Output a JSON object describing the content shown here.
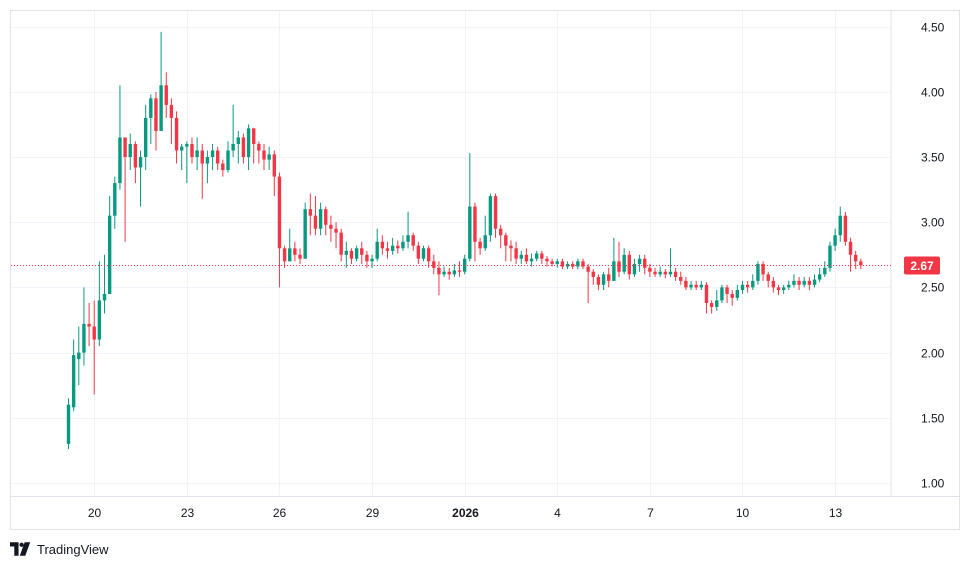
{
  "chart_data": {
    "type": "candlestick",
    "title": "",
    "xlabel": "",
    "ylabel": "",
    "ylim": [
      0.9,
      4.62
    ],
    "y_ticks": [
      "4.50",
      "4.00",
      "3.50",
      "3.00",
      "2.50",
      "2.00",
      "1.50",
      "1.00"
    ],
    "x_ticks": [
      {
        "label": "20",
        "index": 5,
        "bold": false
      },
      {
        "label": "23",
        "index": 23,
        "bold": false
      },
      {
        "label": "26",
        "index": 41,
        "bold": false
      },
      {
        "label": "29",
        "index": 59,
        "bold": false
      },
      {
        "label": "2026",
        "index": 77,
        "bold": true
      },
      {
        "label": "4",
        "index": 95,
        "bold": false
      },
      {
        "label": "7",
        "index": 113,
        "bold": false
      },
      {
        "label": "10",
        "index": 131,
        "bold": false
      },
      {
        "label": "13",
        "index": 149,
        "bold": false
      }
    ],
    "last_price": "2.67",
    "last_value": 2.67,
    "up_color": "#089981",
    "down_color": "#f23645",
    "grid": true,
    "candles": [
      [
        1.3,
        1.6,
        1.65,
        1.26
      ],
      [
        1.58,
        1.98,
        2.1,
        1.55
      ],
      [
        1.95,
        2.0,
        2.2,
        1.75
      ],
      [
        2.0,
        2.22,
        2.5,
        1.9
      ],
      [
        2.22,
        2.2,
        2.38,
        2.05
      ],
      [
        2.2,
        2.1,
        2.4,
        1.68
      ],
      [
        2.1,
        2.4,
        2.7,
        2.05
      ],
      [
        2.4,
        2.45,
        2.75,
        2.3
      ],
      [
        2.45,
        3.05,
        3.2,
        2.45
      ],
      [
        3.05,
        3.3,
        3.35,
        2.95
      ],
      [
        3.3,
        3.65,
        4.05,
        3.25
      ],
      [
        3.65,
        3.5,
        3.65,
        2.85
      ],
      [
        3.5,
        3.6,
        3.68,
        3.4
      ],
      [
        3.6,
        3.42,
        3.62,
        3.3
      ],
      [
        3.42,
        3.5,
        3.55,
        3.12
      ],
      [
        3.5,
        3.8,
        3.9,
        3.4
      ],
      [
        3.8,
        3.95,
        3.98,
        3.6
      ],
      [
        3.95,
        3.7,
        4.0,
        3.55
      ],
      [
        3.7,
        4.05,
        4.46,
        3.7
      ],
      [
        4.05,
        3.9,
        4.15,
        3.8
      ],
      [
        3.9,
        3.8,
        3.95,
        3.6
      ],
      [
        3.8,
        3.55,
        3.85,
        3.45
      ],
      [
        3.55,
        3.58,
        3.6,
        3.4
      ],
      [
        3.58,
        3.6,
        3.62,
        3.3
      ],
      [
        3.6,
        3.5,
        3.65,
        3.45
      ],
      [
        3.5,
        3.55,
        3.65,
        3.4
      ],
      [
        3.55,
        3.45,
        3.6,
        3.18
      ],
      [
        3.45,
        3.5,
        3.55,
        3.3
      ],
      [
        3.5,
        3.55,
        3.6,
        3.4
      ],
      [
        3.55,
        3.45,
        3.58,
        3.4
      ],
      [
        3.45,
        3.4,
        3.48,
        3.35
      ],
      [
        3.4,
        3.55,
        3.62,
        3.38
      ],
      [
        3.55,
        3.6,
        3.9,
        3.5
      ],
      [
        3.6,
        3.65,
        3.7,
        3.45
      ],
      [
        3.65,
        3.5,
        3.68,
        3.45
      ],
      [
        3.5,
        3.72,
        3.75,
        3.4
      ],
      [
        3.72,
        3.6,
        3.72,
        3.45
      ],
      [
        3.6,
        3.55,
        3.62,
        3.45
      ],
      [
        3.55,
        3.48,
        3.6,
        3.4
      ],
      [
        3.48,
        3.52,
        3.58,
        3.4
      ],
      [
        3.52,
        3.35,
        3.55,
        3.2
      ],
      [
        3.35,
        2.8,
        3.38,
        2.5
      ],
      [
        2.8,
        2.7,
        2.82,
        2.65
      ],
      [
        2.7,
        2.8,
        2.95,
        2.7
      ],
      [
        2.8,
        2.75,
        2.85,
        2.7
      ],
      [
        2.75,
        2.72,
        2.8,
        2.68
      ],
      [
        2.72,
        3.1,
        3.15,
        2.72
      ],
      [
        3.1,
        3.05,
        3.22,
        2.9
      ],
      [
        3.05,
        2.95,
        3.2,
        2.9
      ],
      [
        2.95,
        3.1,
        3.15,
        2.9
      ],
      [
        3.1,
        2.98,
        3.12,
        2.9
      ],
      [
        2.98,
        2.95,
        3.05,
        2.85
      ],
      [
        2.95,
        2.92,
        3.0,
        2.8
      ],
      [
        2.92,
        2.75,
        2.95,
        2.7
      ],
      [
        2.75,
        2.78,
        2.85,
        2.65
      ],
      [
        2.78,
        2.72,
        2.8,
        2.68
      ],
      [
        2.72,
        2.8,
        2.82,
        2.7
      ],
      [
        2.8,
        2.75,
        2.85,
        2.68
      ],
      [
        2.75,
        2.7,
        2.78,
        2.65
      ],
      [
        2.7,
        2.72,
        2.75,
        2.65
      ],
      [
        2.72,
        2.85,
        2.95,
        2.7
      ],
      [
        2.85,
        2.8,
        2.9,
        2.75
      ],
      [
        2.8,
        2.78,
        2.85,
        2.72
      ],
      [
        2.78,
        2.82,
        2.88,
        2.75
      ],
      [
        2.82,
        2.8,
        2.86,
        2.76
      ],
      [
        2.8,
        2.85,
        2.9,
        2.78
      ],
      [
        2.85,
        2.9,
        3.08,
        2.8
      ],
      [
        2.9,
        2.82,
        2.92,
        2.78
      ],
      [
        2.82,
        2.72,
        2.85,
        2.68
      ],
      [
        2.72,
        2.8,
        2.82,
        2.7
      ],
      [
        2.8,
        2.7,
        2.82,
        2.65
      ],
      [
        2.7,
        2.65,
        2.75,
        2.6
      ],
      [
        2.65,
        2.6,
        2.7,
        2.44
      ],
      [
        2.6,
        2.62,
        2.66,
        2.58
      ],
      [
        2.62,
        2.6,
        2.65,
        2.56
      ],
      [
        2.6,
        2.63,
        2.68,
        2.58
      ],
      [
        2.63,
        2.62,
        2.7,
        2.58
      ],
      [
        2.62,
        2.72,
        2.75,
        2.6
      ],
      [
        2.72,
        3.12,
        3.53,
        2.7
      ],
      [
        3.12,
        2.85,
        3.15,
        2.7
      ],
      [
        2.85,
        2.8,
        2.88,
        2.75
      ],
      [
        2.8,
        2.9,
        3.05,
        2.78
      ],
      [
        2.9,
        3.2,
        3.22,
        2.85
      ],
      [
        3.2,
        2.95,
        3.22,
        2.88
      ],
      [
        2.95,
        2.9,
        2.98,
        2.8
      ],
      [
        2.9,
        2.82,
        2.92,
        2.7
      ],
      [
        2.82,
        2.8,
        2.86,
        2.7
      ],
      [
        2.8,
        2.72,
        2.85,
        2.68
      ],
      [
        2.72,
        2.75,
        2.78,
        2.68
      ],
      [
        2.75,
        2.7,
        2.8,
        2.68
      ],
      [
        2.7,
        2.72,
        2.76,
        2.66
      ],
      [
        2.72,
        2.76,
        2.78,
        2.7
      ],
      [
        2.76,
        2.72,
        2.78,
        2.68
      ],
      [
        2.72,
        2.7,
        2.74,
        2.66
      ],
      [
        2.7,
        2.68,
        2.72,
        2.66
      ],
      [
        2.68,
        2.7,
        2.72,
        2.65
      ],
      [
        2.7,
        2.66,
        2.72,
        2.64
      ],
      [
        2.66,
        2.68,
        2.7,
        2.64
      ],
      [
        2.68,
        2.66,
        2.7,
        2.64
      ],
      [
        2.66,
        2.7,
        2.72,
        2.64
      ],
      [
        2.7,
        2.66,
        2.72,
        2.64
      ],
      [
        2.66,
        2.62,
        2.68,
        2.38
      ],
      [
        2.62,
        2.58,
        2.64,
        2.52
      ],
      [
        2.58,
        2.52,
        2.6,
        2.48
      ],
      [
        2.52,
        2.6,
        2.62,
        2.48
      ],
      [
        2.6,
        2.55,
        2.65,
        2.5
      ],
      [
        2.55,
        2.7,
        2.88,
        2.55
      ],
      [
        2.7,
        2.62,
        2.85,
        2.58
      ],
      [
        2.62,
        2.75,
        2.8,
        2.6
      ],
      [
        2.75,
        2.6,
        2.78,
        2.56
      ],
      [
        2.6,
        2.68,
        2.72,
        2.58
      ],
      [
        2.68,
        2.72,
        2.75,
        2.62
      ],
      [
        2.72,
        2.65,
        2.75,
        2.6
      ],
      [
        2.65,
        2.62,
        2.68,
        2.58
      ],
      [
        2.62,
        2.6,
        2.65,
        2.58
      ],
      [
        2.6,
        2.62,
        2.66,
        2.58
      ],
      [
        2.62,
        2.6,
        2.64,
        2.57
      ],
      [
        2.6,
        2.62,
        2.8,
        2.58
      ],
      [
        2.62,
        2.58,
        2.65,
        2.55
      ],
      [
        2.58,
        2.55,
        2.62,
        2.52
      ],
      [
        2.55,
        2.5,
        2.58,
        2.48
      ],
      [
        2.5,
        2.52,
        2.55,
        2.48
      ],
      [
        2.52,
        2.5,
        2.55,
        2.48
      ],
      [
        2.5,
        2.52,
        2.55,
        2.48
      ],
      [
        2.52,
        2.38,
        2.54,
        2.3
      ],
      [
        2.38,
        2.35,
        2.4,
        2.3
      ],
      [
        2.35,
        2.4,
        2.48,
        2.32
      ],
      [
        2.4,
        2.5,
        2.52,
        2.38
      ],
      [
        2.5,
        2.45,
        2.52,
        2.38
      ],
      [
        2.45,
        2.42,
        2.48,
        2.36
      ],
      [
        2.42,
        2.48,
        2.52,
        2.4
      ],
      [
        2.48,
        2.52,
        2.55,
        2.45
      ],
      [
        2.52,
        2.5,
        2.55,
        2.46
      ],
      [
        2.5,
        2.55,
        2.6,
        2.48
      ],
      [
        2.55,
        2.68,
        2.7,
        2.52
      ],
      [
        2.68,
        2.6,
        2.7,
        2.55
      ],
      [
        2.6,
        2.55,
        2.62,
        2.5
      ],
      [
        2.55,
        2.5,
        2.58,
        2.46
      ],
      [
        2.5,
        2.48,
        2.52,
        2.44
      ],
      [
        2.48,
        2.5,
        2.52,
        2.45
      ],
      [
        2.5,
        2.52,
        2.55,
        2.48
      ],
      [
        2.52,
        2.55,
        2.6,
        2.5
      ],
      [
        2.55,
        2.52,
        2.58,
        2.48
      ],
      [
        2.52,
        2.55,
        2.58,
        2.5
      ],
      [
        2.55,
        2.52,
        2.58,
        2.48
      ],
      [
        2.52,
        2.56,
        2.6,
        2.5
      ],
      [
        2.56,
        2.6,
        2.65,
        2.54
      ],
      [
        2.6,
        2.65,
        2.7,
        2.58
      ],
      [
        2.65,
        2.82,
        2.85,
        2.62
      ],
      [
        2.82,
        2.9,
        2.95,
        2.78
      ],
      [
        2.9,
        3.05,
        3.12,
        2.85
      ],
      [
        3.05,
        2.85,
        3.08,
        2.82
      ],
      [
        2.85,
        2.75,
        2.88,
        2.62
      ],
      [
        2.75,
        2.7,
        2.78,
        2.64
      ],
      [
        2.7,
        2.67,
        2.72,
        2.64
      ]
    ]
  }
}
